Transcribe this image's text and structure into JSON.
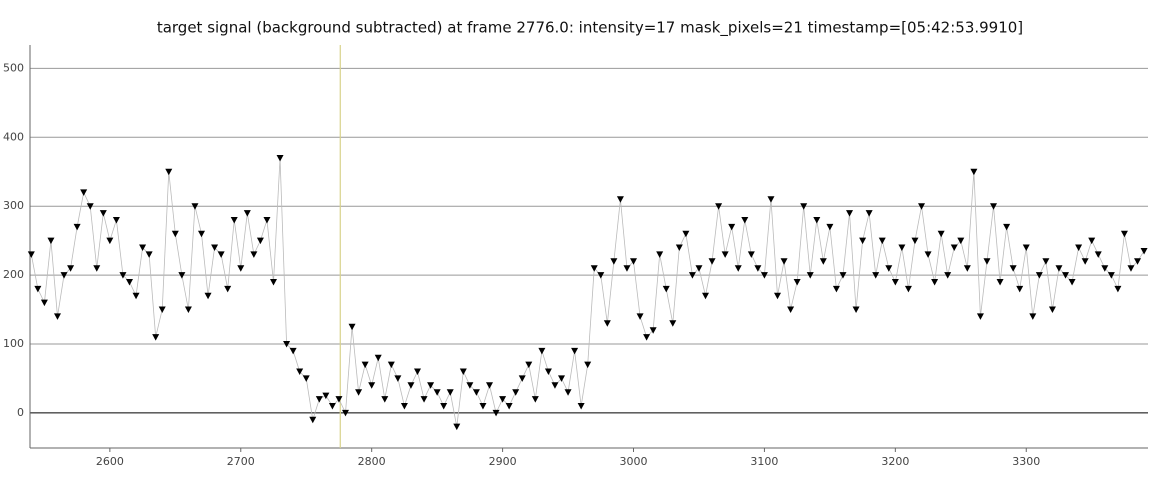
{
  "chart_data": {
    "type": "scatter",
    "title": "target signal (background subtracted) at frame 2776.0: intensity=17 mask_pixels=21 timestamp=[05:42:53.9910]",
    "x": [
      2540,
      2545,
      2550,
      2555,
      2560,
      2565,
      2570,
      2575,
      2580,
      2585,
      2590,
      2595,
      2600,
      2605,
      2610,
      2615,
      2620,
      2625,
      2630,
      2635,
      2640,
      2645,
      2650,
      2655,
      2660,
      2665,
      2670,
      2675,
      2680,
      2685,
      2690,
      2695,
      2700,
      2705,
      2710,
      2715,
      2720,
      2725,
      2730,
      2735,
      2740,
      2745,
      2750,
      2755,
      2760,
      2765,
      2770,
      2775,
      2780,
      2785,
      2790,
      2795,
      2800,
      2805,
      2810,
      2815,
      2820,
      2825,
      2830,
      2835,
      2840,
      2845,
      2850,
      2855,
      2860,
      2865,
      2870,
      2875,
      2880,
      2885,
      2890,
      2895,
      2900,
      2905,
      2910,
      2915,
      2920,
      2925,
      2930,
      2935,
      2940,
      2945,
      2950,
      2955,
      2960,
      2965,
      2970,
      2975,
      2980,
      2985,
      2990,
      2995,
      3000,
      3005,
      3010,
      3015,
      3020,
      3025,
      3030,
      3035,
      3040,
      3045,
      3050,
      3055,
      3060,
      3065,
      3070,
      3075,
      3080,
      3085,
      3090,
      3095,
      3100,
      3105,
      3110,
      3115,
      3120,
      3125,
      3130,
      3135,
      3140,
      3145,
      3150,
      3155,
      3160,
      3165,
      3170,
      3175,
      3180,
      3185,
      3190,
      3195,
      3200,
      3205,
      3210,
      3215,
      3220,
      3225,
      3230,
      3235,
      3240,
      3245,
      3250,
      3255,
      3260,
      3265,
      3270,
      3275,
      3280,
      3285,
      3290,
      3295,
      3300,
      3305,
      3310,
      3315,
      3320,
      3325,
      3330,
      3335,
      3340,
      3345,
      3350,
      3355,
      3360,
      3365,
      3370,
      3375,
      3380,
      3385,
      3390
    ],
    "series": [
      {
        "color": "#000000",
        "line_color": "#bbbbbb",
        "marker": "triangle-down",
        "values": [
          230,
          180,
          160,
          250,
          140,
          200,
          210,
          270,
          320,
          300,
          210,
          290,
          250,
          280,
          200,
          190,
          170,
          240,
          230,
          110,
          150,
          350,
          260,
          200,
          150,
          300,
          260,
          170,
          240,
          230,
          180,
          280,
          210,
          290,
          230,
          250,
          280,
          190,
          370,
          100,
          90,
          60,
          50,
          -10,
          20,
          25,
          10,
          20,
          0,
          125,
          30,
          70,
          40,
          80,
          20,
          70,
          50,
          10,
          40,
          60,
          20,
          40,
          30,
          10,
          30,
          -20,
          60,
          40,
          30,
          10,
          40,
          0,
          20,
          10,
          30,
          50,
          70,
          20,
          90,
          60,
          40,
          50,
          30,
          90,
          10,
          70,
          210,
          200,
          130,
          220,
          310,
          210,
          220,
          140,
          110,
          120,
          230,
          180,
          130,
          240,
          260,
          200,
          210,
          170,
          220,
          300,
          230,
          270,
          210,
          280,
          230,
          210,
          200,
          310,
          170,
          220,
          150,
          190,
          300,
          200,
          280,
          220,
          270,
          180,
          200,
          290,
          150,
          250,
          290,
          200,
          250,
          210,
          190,
          240,
          180,
          250,
          300,
          230,
          190,
          260,
          200,
          240,
          250,
          210,
          350,
          140,
          220,
          300,
          190,
          270,
          210,
          180,
          240,
          140,
          200,
          220,
          150,
          210,
          200,
          190,
          240,
          220,
          250,
          230,
          210,
          200,
          180,
          260,
          210,
          220,
          235
        ]
      }
    ],
    "cursor_x": 2776,
    "cursor_color": "#d8d28a",
    "xlim": [
      2539,
      3393
    ],
    "ylim": [
      -51,
      534
    ],
    "xticks": [
      2600,
      2700,
      2800,
      2900,
      3000,
      3100,
      3200,
      3300
    ],
    "yticks": [
      0,
      100,
      200,
      300,
      400,
      500
    ],
    "grid": true
  }
}
